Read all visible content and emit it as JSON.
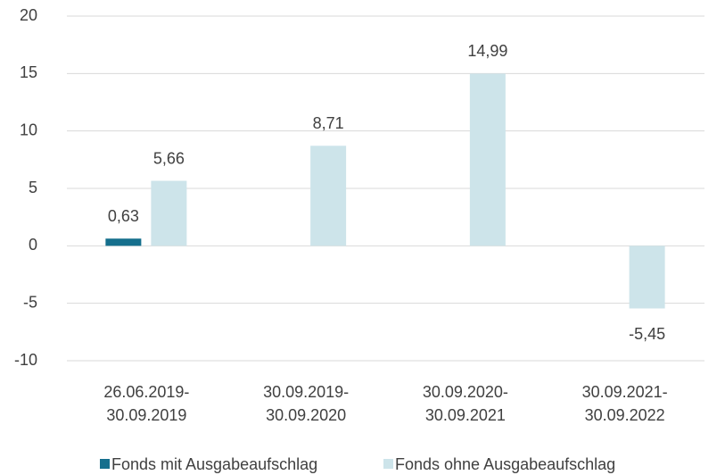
{
  "chart_data": {
    "type": "bar",
    "categories": [
      "26.06.2019-\n30.09.2019",
      "30.09.2019-\n30.09.2020",
      "30.09.2020-\n30.09.2021",
      "30.09.2021-\n30.09.2022"
    ],
    "series": [
      {
        "name": "Fonds mit Ausgabeaufschlag",
        "color": "#156f8d",
        "values": [
          0.63,
          null,
          null,
          null
        ],
        "value_labels": [
          "0,63",
          null,
          null,
          null
        ]
      },
      {
        "name": "Fonds ohne Ausgabeaufschlag",
        "color": "#cde4ea",
        "values": [
          5.66,
          8.71,
          14.99,
          -5.45
        ],
        "value_labels": [
          "5,66",
          "8,71",
          "14,99",
          "-5,45"
        ]
      }
    ],
    "ylim": [
      -10,
      20
    ],
    "yticks": [
      -10,
      -5,
      0,
      5,
      10,
      15,
      20
    ],
    "grid": true
  }
}
